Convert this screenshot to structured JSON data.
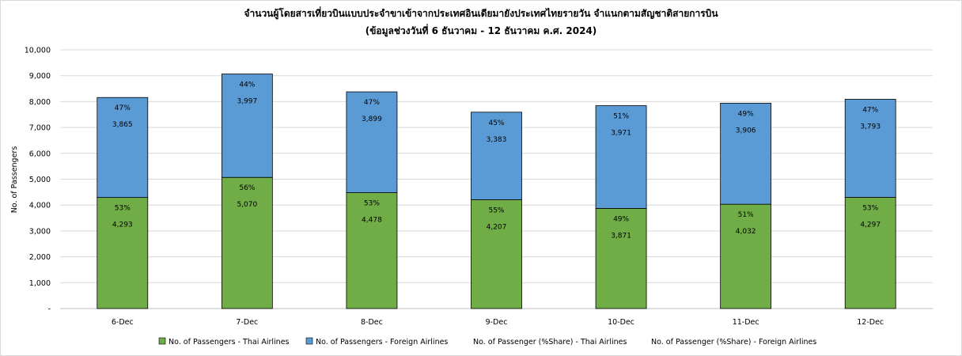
{
  "chart_data": {
    "type": "bar",
    "stacked": true,
    "title": "จำนวนผู้โดยสารเที่ยวบินแบบประจำขาเข้าจากประเทศอินเดียมายังประเทศไทยรายวัน จำแนกตามสัญชาติสายการบิน",
    "subtitle": "(ข้อมูลช่วงวันที่ 6 ธันวาคม - 12 ธันวาคม ค.ศ. 2024)",
    "xlabel": "",
    "ylabel": "No. of Passengers",
    "ylim": [
      0,
      10000
    ],
    "yticks": [
      0,
      1000,
      2000,
      3000,
      4000,
      5000,
      6000,
      7000,
      8000,
      9000,
      10000
    ],
    "ytick_labels": [
      "-",
      "1,000",
      "2,000",
      "3,000",
      "4,000",
      "5,000",
      "6,000",
      "7,000",
      "8,000",
      "9,000",
      "10,000"
    ],
    "grid": true,
    "legend_position": "bottom",
    "categories": [
      "6-Dec",
      "7-Dec",
      "8-Dec",
      "9-Dec",
      "10-Dec",
      "11-Dec",
      "12-Dec"
    ],
    "series": [
      {
        "name": "No. of Passengers - Thai Airlines",
        "color": "#70ad47",
        "values": [
          4293,
          5070,
          4478,
          4207,
          3871,
          4032,
          4297
        ],
        "value_labels": [
          "4,293",
          "5,070",
          "4,478",
          "4,207",
          "3,871",
          "4,032",
          "4,297"
        ],
        "share_labels": [
          "53%",
          "56%",
          "53%",
          "55%",
          "49%",
          "51%",
          "53%"
        ]
      },
      {
        "name": "No. of Passengers - Foreign Airlines",
        "color": "#5b9bd5",
        "values": [
          3865,
          3997,
          3899,
          3383,
          3971,
          3906,
          3793
        ],
        "value_labels": [
          "3,865",
          "3,997",
          "3,899",
          "3,383",
          "3,971",
          "3,906",
          "3,793"
        ],
        "share_labels": [
          "47%",
          "44%",
          "47%",
          "45%",
          "51%",
          "49%",
          "47%"
        ]
      }
    ],
    "legend": [
      {
        "label": "No. of Passengers - Thai Airlines",
        "marker": true,
        "color": "#70ad47"
      },
      {
        "label": "No. of Passengers - Foreign Airlines",
        "marker": true,
        "color": "#5b9bd5"
      },
      {
        "label": "No. of Passenger (%Share) - Thai Airlines",
        "marker": false,
        "color": ""
      },
      {
        "label": "No. of Passenger (%Share) - Foreign Airlines",
        "marker": false,
        "color": ""
      }
    ]
  }
}
